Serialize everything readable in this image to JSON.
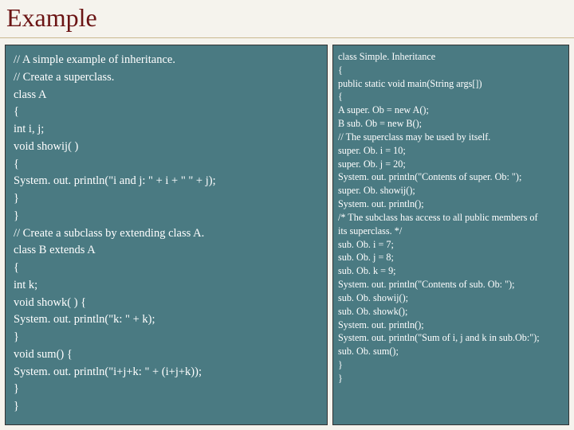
{
  "title": "Example",
  "colors": {
    "slide_bg": "#f5f3ed",
    "title_color": "#6b1414",
    "title_underline": "#c9b98f",
    "code_bg": "#4a7a82",
    "code_border": "#333333",
    "code_text": "#ffffff"
  },
  "typography": {
    "title_fontsize": 32,
    "left_code_fontsize": 14.5,
    "right_code_fontsize": 12.2,
    "font_family": "Georgia, Times New Roman, serif"
  },
  "layout": {
    "slide_width": 720,
    "slide_height": 540,
    "left_block_width": 405,
    "right_block_width": 297,
    "block_height": 478
  },
  "code_left": {
    "lines": [
      "// A simple example of inheritance.",
      "// Create a superclass.",
      "class A",
      "{",
      "int i, j;",
      "void showij( )",
      "{",
      "System. out. println(\"i and j: \" + i + \" \" + j);",
      "}",
      "}",
      "// Create a subclass by extending class A.",
      "class B extends A",
      "{",
      "int k;",
      "void showk( ) {",
      "System. out. println(\"k: \" + k);",
      "}",
      "void sum() {",
      "System. out. println(\"i+j+k: \" + (i+j+k));",
      "}",
      "}"
    ]
  },
  "code_right": {
    "lines": [
      "class Simple. Inheritance",
      "{",
      "public static void main(String args[])",
      "{",
      "A super. Ob = new A();",
      "B sub. Ob = new B();",
      "// The superclass may be used by itself.",
      "super. Ob. i = 10;",
      "super. Ob. j = 20;",
      "System. out. println(\"Contents of super. Ob: \");",
      "super. Ob. showij();",
      "System. out. println();",
      "/* The subclass has access to all public members of",
      "its superclass. */",
      "sub. Ob. i = 7;",
      "sub. Ob. j = 8;",
      "sub. Ob. k = 9;",
      "System. out. println(\"Contents of sub. Ob: \");",
      "sub. Ob. showij();",
      "sub. Ob. showk();",
      "System. out. println();",
      "System. out. println(\"Sum of i, j and k in sub.Ob:\");",
      "sub. Ob. sum();",
      "}",
      "}"
    ]
  }
}
